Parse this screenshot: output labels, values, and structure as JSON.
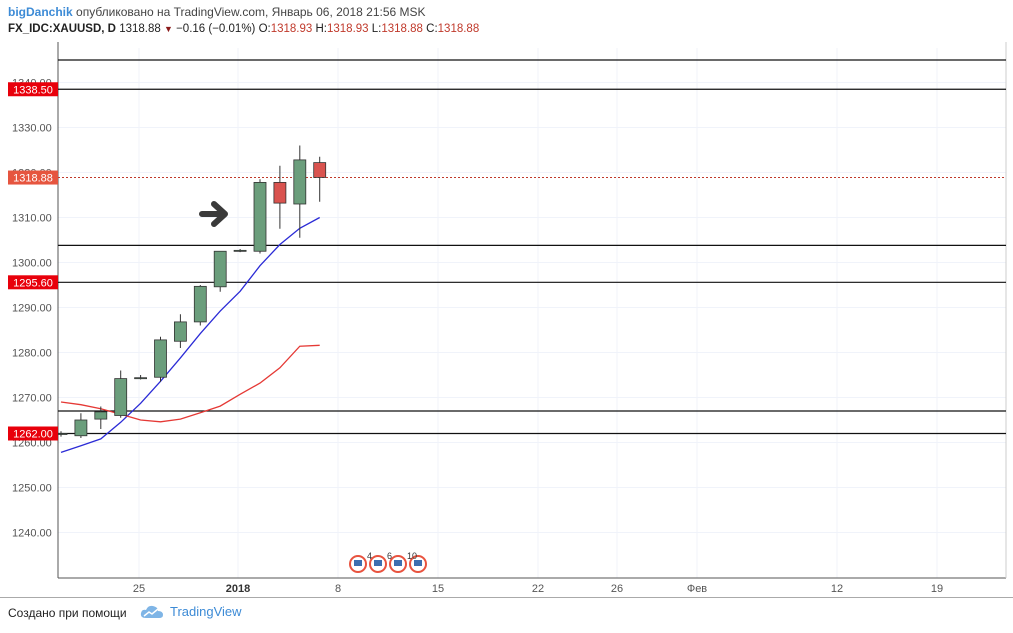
{
  "header": {
    "author": "bigDanchik",
    "published": " опубликовано на TradingView.com, Январь 06, 2018 21:56 MSK",
    "symbol": "FX_IDC:XAUUSD, D",
    "last": "1318.88",
    "change": "−0.16 (−0.01%)",
    "o_label": "O:",
    "o": "1318.93",
    "h_label": "H:",
    "h": "1318.93",
    "l_label": "L:",
    "l": "1318.88",
    "c_label": "C:",
    "c": "1318.88"
  },
  "footer": {
    "created_with": "Создано при помощи",
    "brand": "TradingView"
  },
  "colors": {
    "up": "#6b9e7c",
    "down": "#d9534f",
    "ema_fast": "#2b2bd6",
    "ema_slow": "#e53935",
    "price_line": "#c0392b",
    "label_bg": "#e8000b",
    "grid": "#f0f3fa"
  },
  "chart_data": {
    "type": "candlestick",
    "symbol": "FX_IDC:XAUUSD",
    "ylim": [
      1230,
      1348
    ],
    "y_ticks": [
      "1240.00",
      "1250.00",
      "1260.00",
      "1270.00",
      "1280.00",
      "1290.00",
      "1300.00",
      "1310.00",
      "1320.00",
      "1330.00",
      "1340.00"
    ],
    "x_ticks": [
      "25",
      "2018",
      "8",
      "15",
      "22",
      "26",
      "Фев",
      "12",
      "19"
    ],
    "candles": [
      {
        "o": 1261.8,
        "h": 1262.5,
        "l": 1261.3,
        "c": 1262.0
      },
      {
        "o": 1261.5,
        "h": 1266.5,
        "l": 1261.0,
        "c": 1265.0
      },
      {
        "o": 1265.2,
        "h": 1268.0,
        "l": 1263.0,
        "c": 1266.8
      },
      {
        "o": 1266.0,
        "h": 1276.0,
        "l": 1265.5,
        "c": 1274.2
      },
      {
        "o": 1274.3,
        "h": 1275.0,
        "l": 1274.0,
        "c": 1274.4
      },
      {
        "o": 1274.5,
        "h": 1283.5,
        "l": 1273.5,
        "c": 1282.8
      },
      {
        "o": 1282.5,
        "h": 1288.5,
        "l": 1281.0,
        "c": 1286.8
      },
      {
        "o": 1286.8,
        "h": 1295.0,
        "l": 1286.0,
        "c": 1294.7
      },
      {
        "o": 1294.6,
        "h": 1302.5,
        "l": 1293.5,
        "c": 1302.5
      },
      {
        "o": 1302.5,
        "h": 1303.0,
        "l": 1302.3,
        "c": 1302.7
      },
      {
        "o": 1302.5,
        "h": 1318.5,
        "l": 1302.0,
        "c": 1317.8
      },
      {
        "o": 1317.8,
        "h": 1321.5,
        "l": 1307.5,
        "c": 1313.2
      },
      {
        "o": 1313.0,
        "h": 1326.0,
        "l": 1305.5,
        "c": 1322.8
      },
      {
        "o": 1322.2,
        "h": 1323.5,
        "l": 1313.5,
        "c": 1318.9
      }
    ],
    "ema_fast": [
      1257.8,
      1259.3,
      1260.8,
      1264.5,
      1268.7,
      1273.6,
      1278.8,
      1284.2,
      1289.2,
      1293.6,
      1299.3,
      1304.0,
      1307.6,
      1310.0
    ],
    "ema_slow": [
      1269.0,
      1268.4,
      1267.5,
      1266.3,
      1265.0,
      1264.6,
      1265.2,
      1266.6,
      1268.1,
      1270.7,
      1273.2,
      1276.6,
      1281.4,
      1281.6
    ],
    "horizontal_lines": [
      1345.0,
      1338.5,
      1303.8,
      1295.6,
      1267.0,
      1262.0
    ],
    "price_labels": [
      {
        "value": 1338.5,
        "text": "1338.50"
      },
      {
        "value": 1318.88,
        "text": "1318.88"
      },
      {
        "value": 1295.6,
        "text": "1295.60"
      },
      {
        "value": 1262.0,
        "text": "1262.00"
      }
    ],
    "last_price": 1318.88,
    "events": [
      "4",
      "6",
      "10"
    ]
  }
}
